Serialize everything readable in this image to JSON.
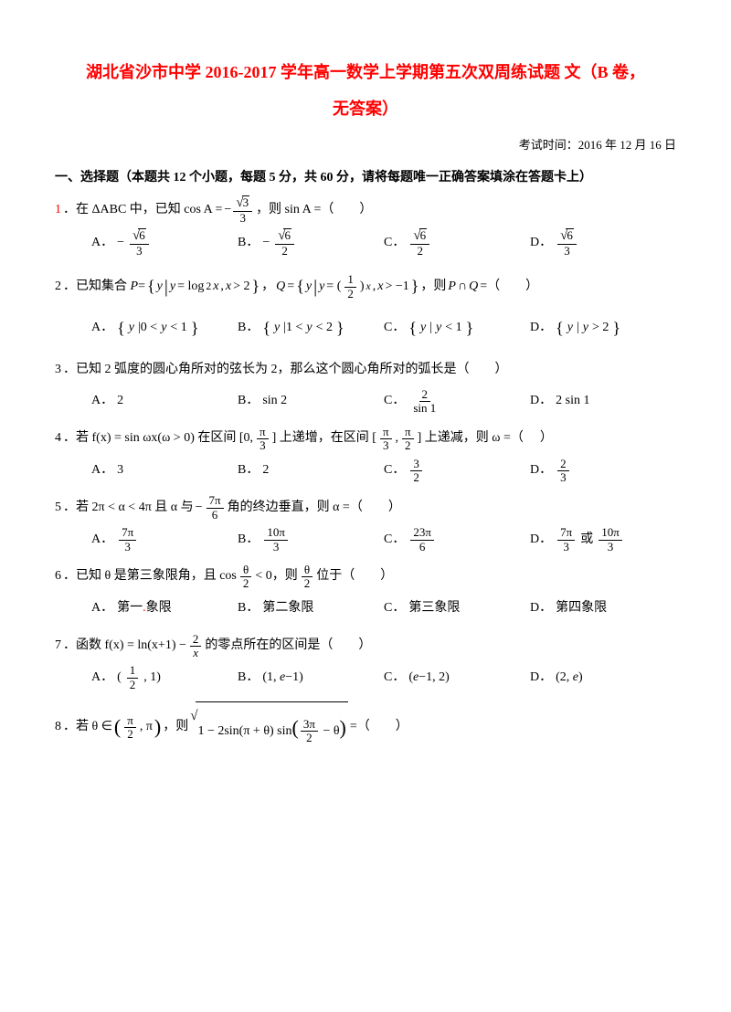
{
  "title_line1": "湖北省沙市中学 2016-2017 学年高一数学上学期第五次双周练试题 文（B 卷，",
  "title_line2": "无答案）",
  "exam_time": "考试时间：2016 年 12 月 16 日",
  "section_header": "一、选择题（本题共 12 个小题，每题 5 分，共 60 分，请将每题唯一正确答案填涂在答题卡上）",
  "questions": [
    {
      "num": "1",
      "stem_text": "．在 ΔABC 中，已知 cos A = ",
      "stem_after": "，则 sin A =（　　）",
      "stem_frac": {
        "neg": "−",
        "num": "√3",
        "den": "3"
      },
      "opts": [
        {
          "label": "A．",
          "neg": "−",
          "num": "√6",
          "den": "3"
        },
        {
          "label": "B．",
          "neg": "−",
          "num": "√6",
          "den": "2"
        },
        {
          "label": "C．",
          "neg": "",
          "num": "√6",
          "den": "2"
        },
        {
          "label": "D．",
          "neg": "",
          "num": "√6",
          "den": "3"
        }
      ]
    },
    {
      "num": "2",
      "stem": "．已知集合 P = { y | y = log₂ x, x > 2 }，Q = { y | y = (½)ˣ, x > −1 }，则 P∩Q =（　　）",
      "opts_text": [
        {
          "label": "A．",
          "text": "{ y | 0 < y < 1 }"
        },
        {
          "label": "B．",
          "text": "{ y | 1 < y < 2 }"
        },
        {
          "label": "C．",
          "text": "{ y | y < 1 }"
        },
        {
          "label": "D．",
          "text": "{ y | y > 2 }"
        }
      ]
    },
    {
      "num": "3",
      "stem": "．已知 2 弧度的圆心角所对的弦长为 2，那么这个圆心角所对的弧长是（　　）",
      "opts_mixed": [
        {
          "label": "A．",
          "text": "2"
        },
        {
          "label": "B．",
          "text": "sin 2"
        },
        {
          "label": "C．",
          "frac": {
            "num": "2",
            "den": "sin 1"
          }
        },
        {
          "label": "D．",
          "text": "2 sin 1"
        }
      ]
    },
    {
      "num": "4",
      "stem_pre": "．若 f(x) = sin ωx(ω > 0) 在区间 [0, ",
      "stem_mid1": "] 上递增，在区间 [",
      "stem_mid2": ", ",
      "stem_end": "] 上递减，则 ω =（",
      "stem_close": "）",
      "f1": {
        "num": "π",
        "den": "3"
      },
      "f2": {
        "num": "π",
        "den": "3"
      },
      "f3": {
        "num": "π",
        "den": "2"
      },
      "opts_mixed": [
        {
          "label": "A．",
          "text": "3"
        },
        {
          "label": "B．",
          "text": "2"
        },
        {
          "label": "C．",
          "frac": {
            "num": "3",
            "den": "2"
          }
        },
        {
          "label": "D．",
          "frac": {
            "num": "2",
            "den": "3"
          }
        }
      ]
    },
    {
      "num": "5",
      "stem_pre": "．若 2π < α < 4π 且 α 与 ",
      "stem_end": " 角的终边垂直，则 α =（　　）",
      "sf": {
        "neg": "−",
        "num": "7π",
        "den": "6"
      },
      "opts_frac": [
        {
          "label": "A．",
          "num": "7π",
          "den": "3"
        },
        {
          "label": "B．",
          "num": "10π",
          "den": "3"
        },
        {
          "label": "C．",
          "num": "23π",
          "den": "6"
        },
        {
          "label": "D．",
          "num": "7π",
          "den": "3",
          "or": " 或 ",
          "num2": "10π",
          "den2": "3"
        }
      ]
    },
    {
      "num": "6",
      "stem_pre": "．已知 θ 是第三象限角，且 cos",
      "stem_mid": " < 0，则 ",
      "stem_end": " 位于（　　）",
      "f1": {
        "num": "θ",
        "den": "2"
      },
      "f2": {
        "num": "θ",
        "den": "2"
      },
      "opts_text": [
        {
          "label": "A．",
          "text": "第一象限"
        },
        {
          "label": "B．",
          "text": "第二象限"
        },
        {
          "label": "C．",
          "text": "第三象限"
        },
        {
          "label": "D．",
          "text": "第四象限"
        }
      ]
    },
    {
      "num": "7",
      "stem_pre": "．函数 f(x) = ln(x+1) − ",
      "stem_end": " 的零点所在的区间是（　　）",
      "sf": {
        "num": "2",
        "den": "x"
      },
      "opts_mixed": [
        {
          "label": "A．",
          "pre": "(",
          "frac": {
            "num": "1",
            "den": "2"
          },
          "post": ", 1)"
        },
        {
          "label": "B．",
          "text": "(1, e−1)"
        },
        {
          "label": "C．",
          "text": "(e−1, 2)"
        },
        {
          "label": "D．",
          "text": "(2, e)"
        }
      ]
    },
    {
      "num": "8",
      "stem_pre": "．若 θ ∈ ",
      "stem_mid": "，则 ",
      "stem_end": " =（　　）",
      "interval_f": {
        "num": "π",
        "den": "2"
      },
      "root_inner_pre": "1 − 2sin(π + θ) sin(",
      "root_f": {
        "num": "3π",
        "den": "2"
      },
      "root_inner_post": " − θ)"
    }
  ]
}
